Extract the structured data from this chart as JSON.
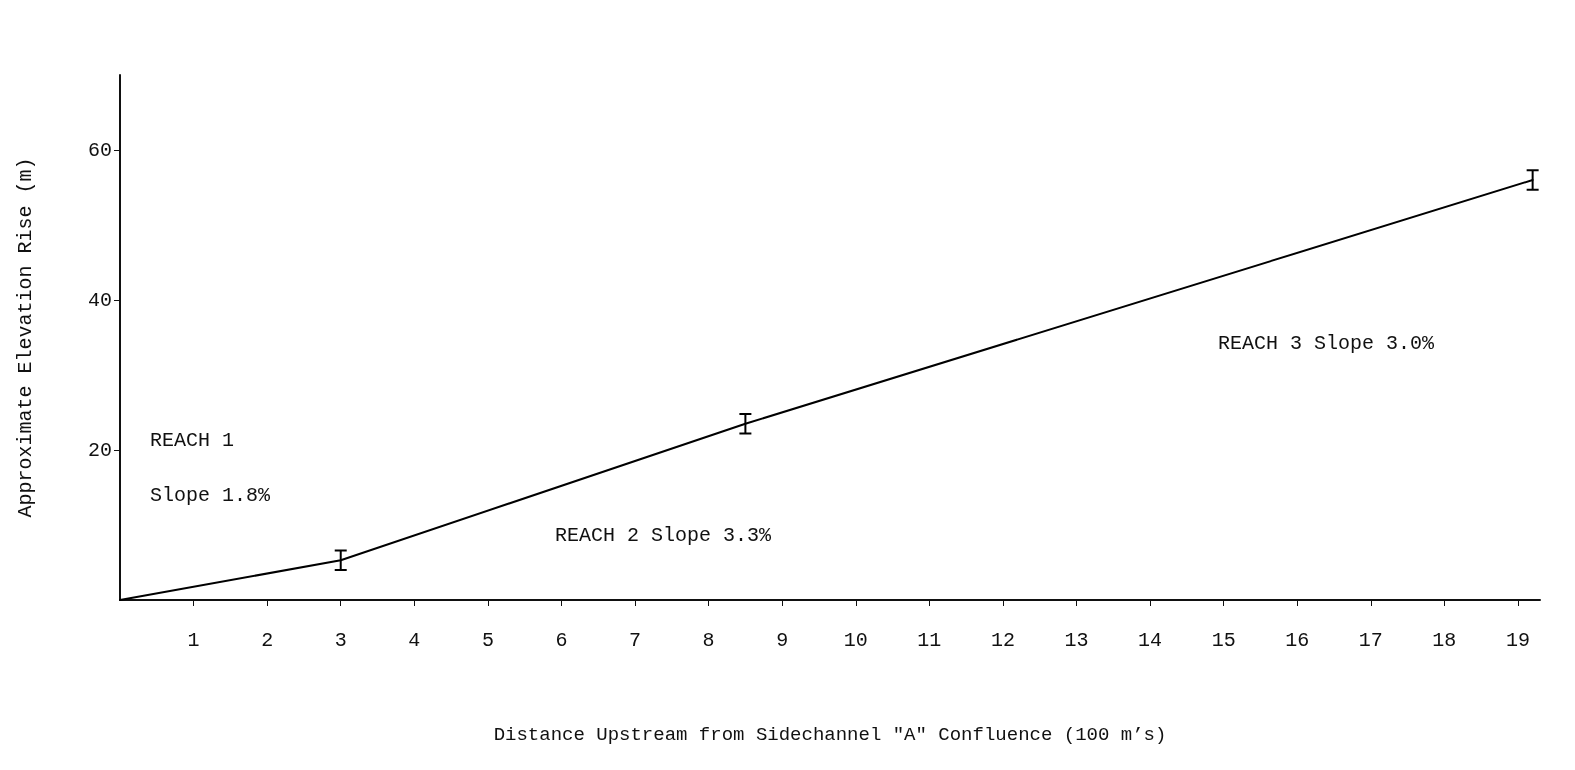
{
  "chart_data": {
    "type": "line",
    "xlabel": "Distance Upstream from Sidechannel \"A\" Confluence (100 m’s)",
    "ylabel": "Approximate Elevation Rise (m)",
    "x": [
      0,
      3,
      8.5,
      19.2
    ],
    "values": [
      0,
      5.3,
      23.5,
      56
    ],
    "errors": [
      null,
      1.3,
      1.3,
      1.3
    ],
    "color": "#000000",
    "xlim": [
      0,
      19.3
    ],
    "xticks": [
      1,
      2,
      3,
      4,
      5,
      6,
      7,
      8,
      9,
      10,
      11,
      12,
      13,
      14,
      15,
      16,
      17,
      18,
      19
    ],
    "ylim": [
      0,
      70
    ],
    "yticks": [
      20,
      40,
      60
    ],
    "grid": false,
    "marker": "none",
    "line_style": "solid",
    "annotations": [
      "REACH 1",
      "Slope 1.8%",
      "REACH 2 Slope 3.3%",
      "REACH 3 Slope 3.0%"
    ]
  }
}
